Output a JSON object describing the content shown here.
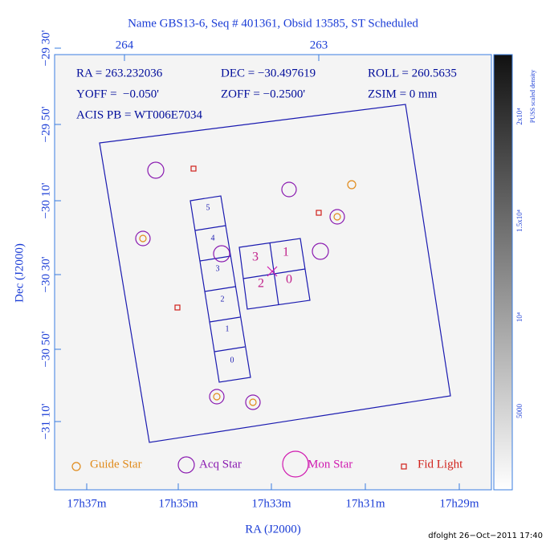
{
  "title": "Name GBS13-6, Seq # 401361, Obsid 13585, ST Scheduled",
  "top_axis": {
    "labels": [
      "264",
      "263"
    ]
  },
  "left_axis": {
    "labels": [
      "−29 30'",
      "−29 50'",
      "−30 10'",
      "−30 30'",
      "−30 50'",
      "−31 10'"
    ],
    "title": "Dec (J2000)"
  },
  "bottom_axis": {
    "labels": [
      "17h37m",
      "17h35m",
      "17h33m",
      "17h31m",
      "17h29m"
    ],
    "title": "RA (J2000)"
  },
  "info": {
    "rows": [
      [
        "RA = 263.232036",
        "DEC = −30.497619",
        "ROLL = 260.5635"
      ],
      [
        "YOFF =  −0.050'",
        "ZOFF = −0.2500'",
        "ZSIM = 0 mm"
      ],
      [
        "ACIS PB = WT006E7034"
      ]
    ]
  },
  "acis_s_chips": [
    "5",
    "4",
    "3",
    "2",
    "1",
    "0"
  ],
  "acis_i_chips": [
    "3",
    "1",
    "2",
    "0"
  ],
  "legend": [
    "Guide Star",
    "Acq Star",
    "Mon Star",
    "Fid Light"
  ],
  "colorbar": {
    "title": "PUSS scaled density",
    "labels": [
      "2x10⁴",
      "1.5x10⁴",
      "10⁴",
      "5000"
    ]
  },
  "footer": "dfolght 26−Oct−2011 17:40"
}
